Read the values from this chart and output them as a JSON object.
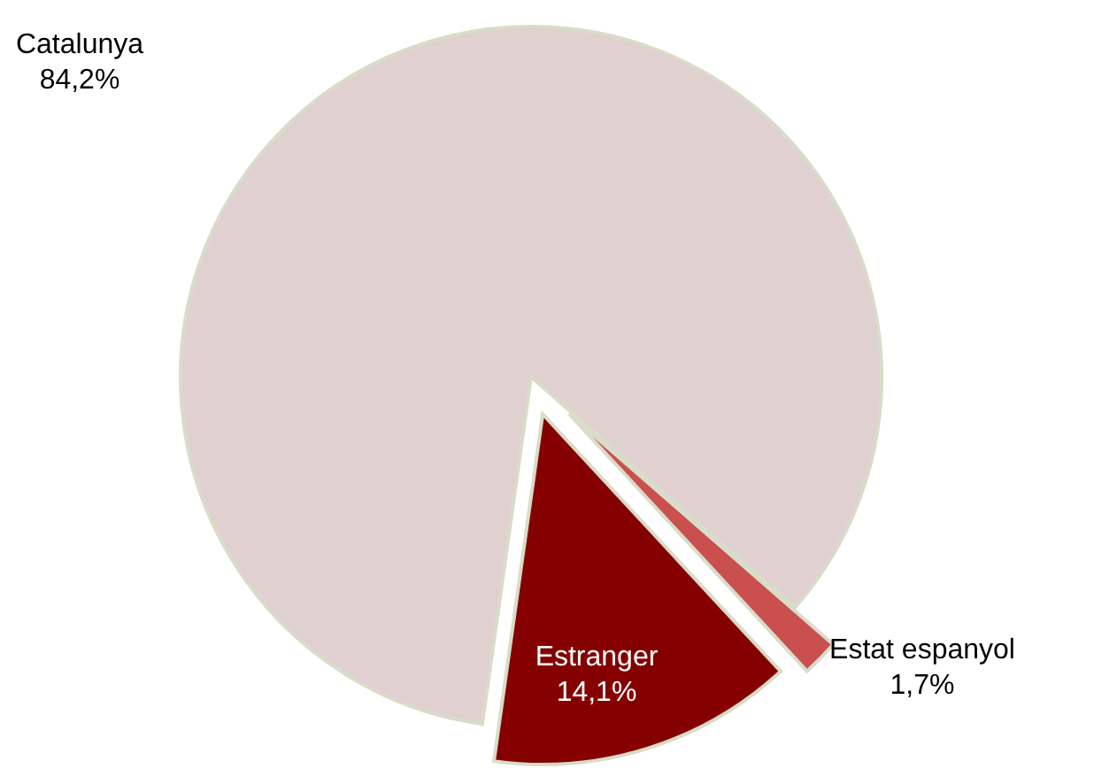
{
  "chart_data": {
    "type": "pie",
    "categories": [
      "Catalunya",
      "Estat espanyol",
      "Estranger"
    ],
    "values": [
      84.2,
      1.7,
      14.1
    ],
    "value_labels": [
      "84,2%",
      "1,7%",
      "14,1%"
    ],
    "colors": [
      "#e0d0cf",
      "#c9504f",
      "#850000"
    ]
  }
}
